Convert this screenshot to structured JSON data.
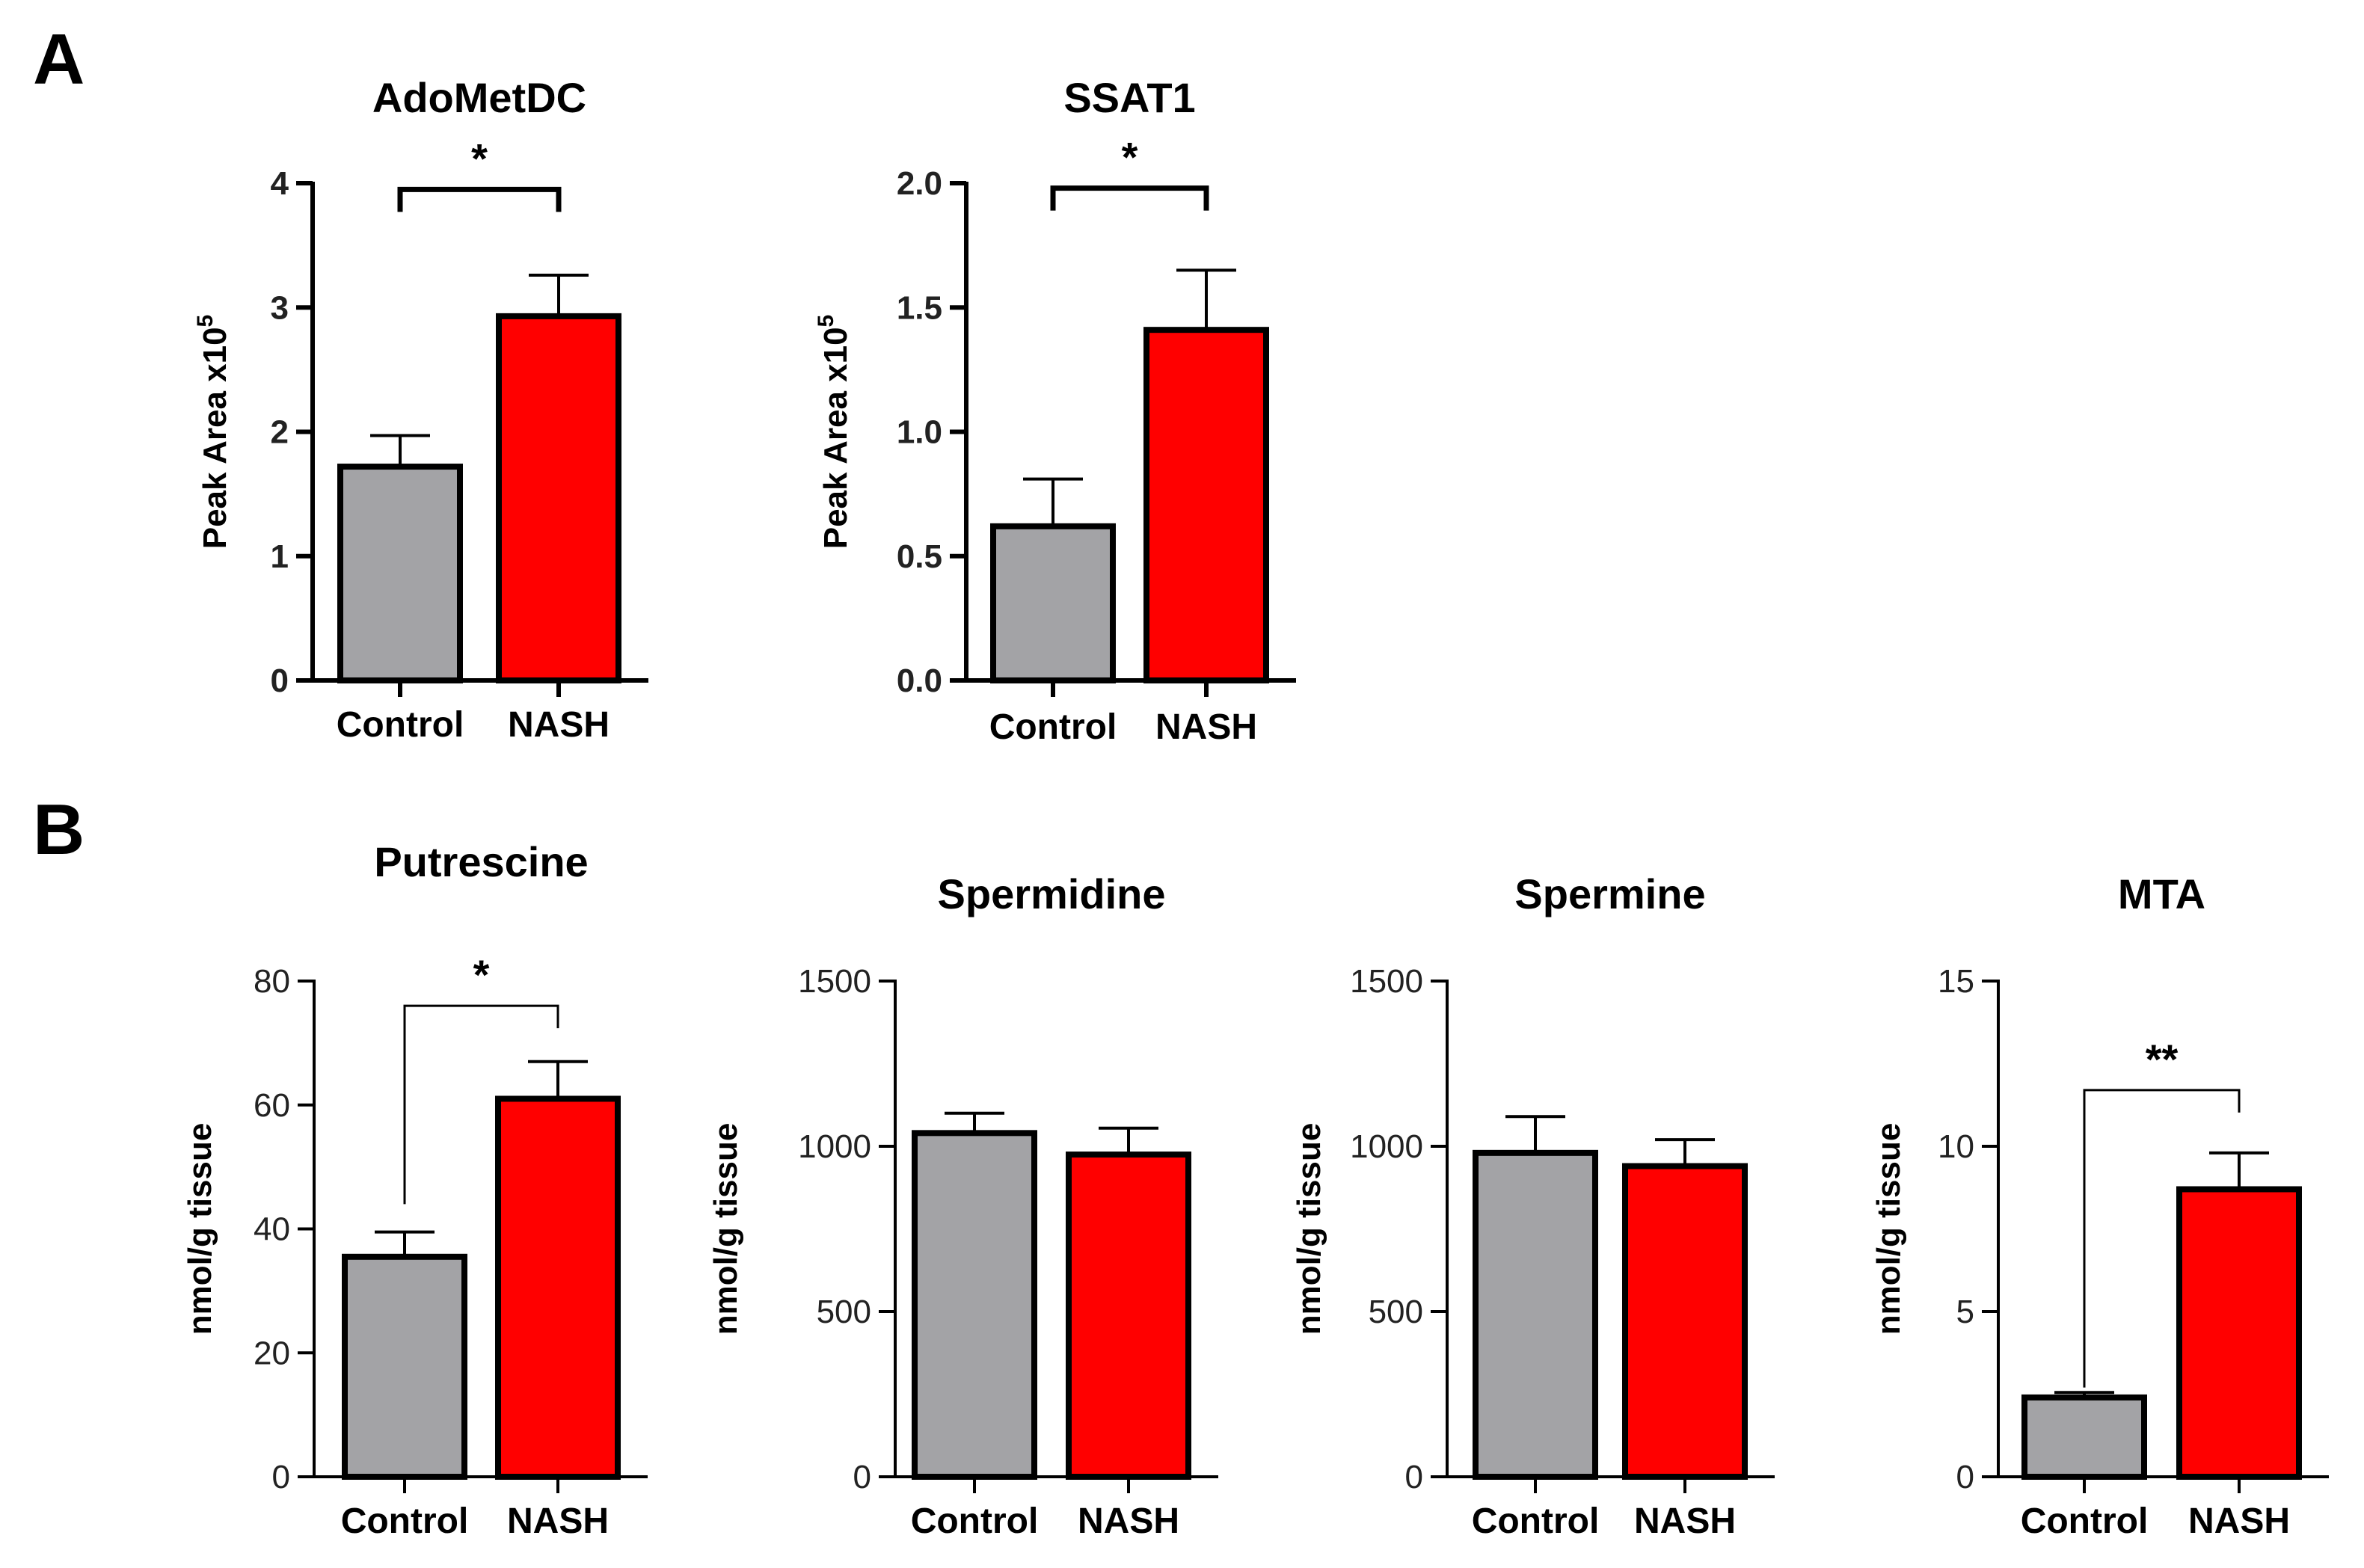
{
  "panels": [
    {
      "letter": "A"
    },
    {
      "letter": "B"
    }
  ],
  "chart_data": [
    {
      "type": "bar",
      "panel": "A",
      "title": "AdoMetDC",
      "ylabel": "Peak Area x10",
      "ylabel_sup": "5",
      "categories": [
        "Control",
        "NASH"
      ],
      "values": [
        1.72,
        2.93
      ],
      "errors": [
        0.25,
        0.33
      ],
      "bar_colors": [
        "#a3a3a6",
        "#ff0000"
      ],
      "ylim": [
        0,
        4
      ],
      "yticks": [
        0,
        1,
        2,
        3,
        4
      ],
      "ytick_labels": [
        "0",
        "1",
        "2",
        "3",
        "4"
      ],
      "significance": {
        "from": 0,
        "to": 1,
        "label": "*",
        "bracket_style": "thick",
        "y": 3.95
      },
      "grid": false
    },
    {
      "type": "bar",
      "panel": "A",
      "title": "SSAT1",
      "ylabel": "Peak Area x10",
      "ylabel_sup": "5",
      "categories": [
        "Control",
        "NASH"
      ],
      "values": [
        0.62,
        1.41
      ],
      "errors": [
        0.19,
        0.24
      ],
      "bar_colors": [
        "#a3a3a6",
        "#ff0000"
      ],
      "ylim": [
        0,
        2.0
      ],
      "yticks": [
        0,
        0.5,
        1.0,
        1.5,
        2.0
      ],
      "ytick_labels": [
        "0.0",
        "0.5",
        "1.0",
        "1.5",
        "2.0"
      ],
      "significance": {
        "from": 0,
        "to": 1,
        "label": "*",
        "bracket_style": "thick",
        "y": 1.98
      },
      "grid": false
    },
    {
      "type": "bar",
      "panel": "B",
      "title": "Putrescine",
      "ylabel": "nmol/g tissue",
      "categories": [
        "Control",
        "NASH"
      ],
      "values": [
        35.5,
        61
      ],
      "errors": [
        4,
        6
      ],
      "bar_colors": [
        "#a3a3a6",
        "#ff0000"
      ],
      "ylim": [
        0,
        80
      ],
      "yticks": [
        0,
        20,
        40,
        60,
        80
      ],
      "ytick_labels": [
        "0",
        "20",
        "40",
        "60",
        "80"
      ],
      "significance": {
        "from": 0,
        "to": 1,
        "label": "*",
        "bracket_style": "thin",
        "y": 76,
        "left_drop_to": 44
      },
      "grid": false
    },
    {
      "type": "bar",
      "panel": "B",
      "title": "Spermidine",
      "ylabel": "nmol/g tissue",
      "categories": [
        "Control",
        "NASH"
      ],
      "values": [
        1040,
        975
      ],
      "errors": [
        60,
        80
      ],
      "bar_colors": [
        "#a3a3a6",
        "#ff0000"
      ],
      "ylim": [
        0,
        1500
      ],
      "yticks": [
        0,
        500,
        1000,
        1500
      ],
      "ytick_labels": [
        "0",
        "500",
        "1000",
        "1500"
      ],
      "grid": false
    },
    {
      "type": "bar",
      "panel": "B",
      "title": "Spermine",
      "ylabel": "nmol/g tissue",
      "categories": [
        "Control",
        "NASH"
      ],
      "values": [
        980,
        940
      ],
      "errors": [
        110,
        80
      ],
      "bar_colors": [
        "#a3a3a6",
        "#ff0000"
      ],
      "ylim": [
        0,
        1500
      ],
      "yticks": [
        0,
        500,
        1000,
        1500
      ],
      "ytick_labels": [
        "0",
        "500",
        "1000",
        "1500"
      ],
      "grid": false
    },
    {
      "type": "bar",
      "panel": "B",
      "title": "MTA",
      "ylabel": "nmol/g tissue",
      "categories": [
        "Control",
        "NASH"
      ],
      "values": [
        2.4,
        8.7
      ],
      "errors": [
        0.15,
        1.1
      ],
      "bar_colors": [
        "#a3a3a6",
        "#ff0000"
      ],
      "ylim": [
        0,
        15
      ],
      "yticks": [
        0,
        5,
        10,
        15
      ],
      "ytick_labels": [
        "0",
        "5",
        "10",
        "15"
      ],
      "significance": {
        "from": 0,
        "to": 1,
        "label": "**",
        "bracket_style": "thin",
        "y": 11.7,
        "left_drop_to": 2.7
      },
      "grid": false
    }
  ]
}
